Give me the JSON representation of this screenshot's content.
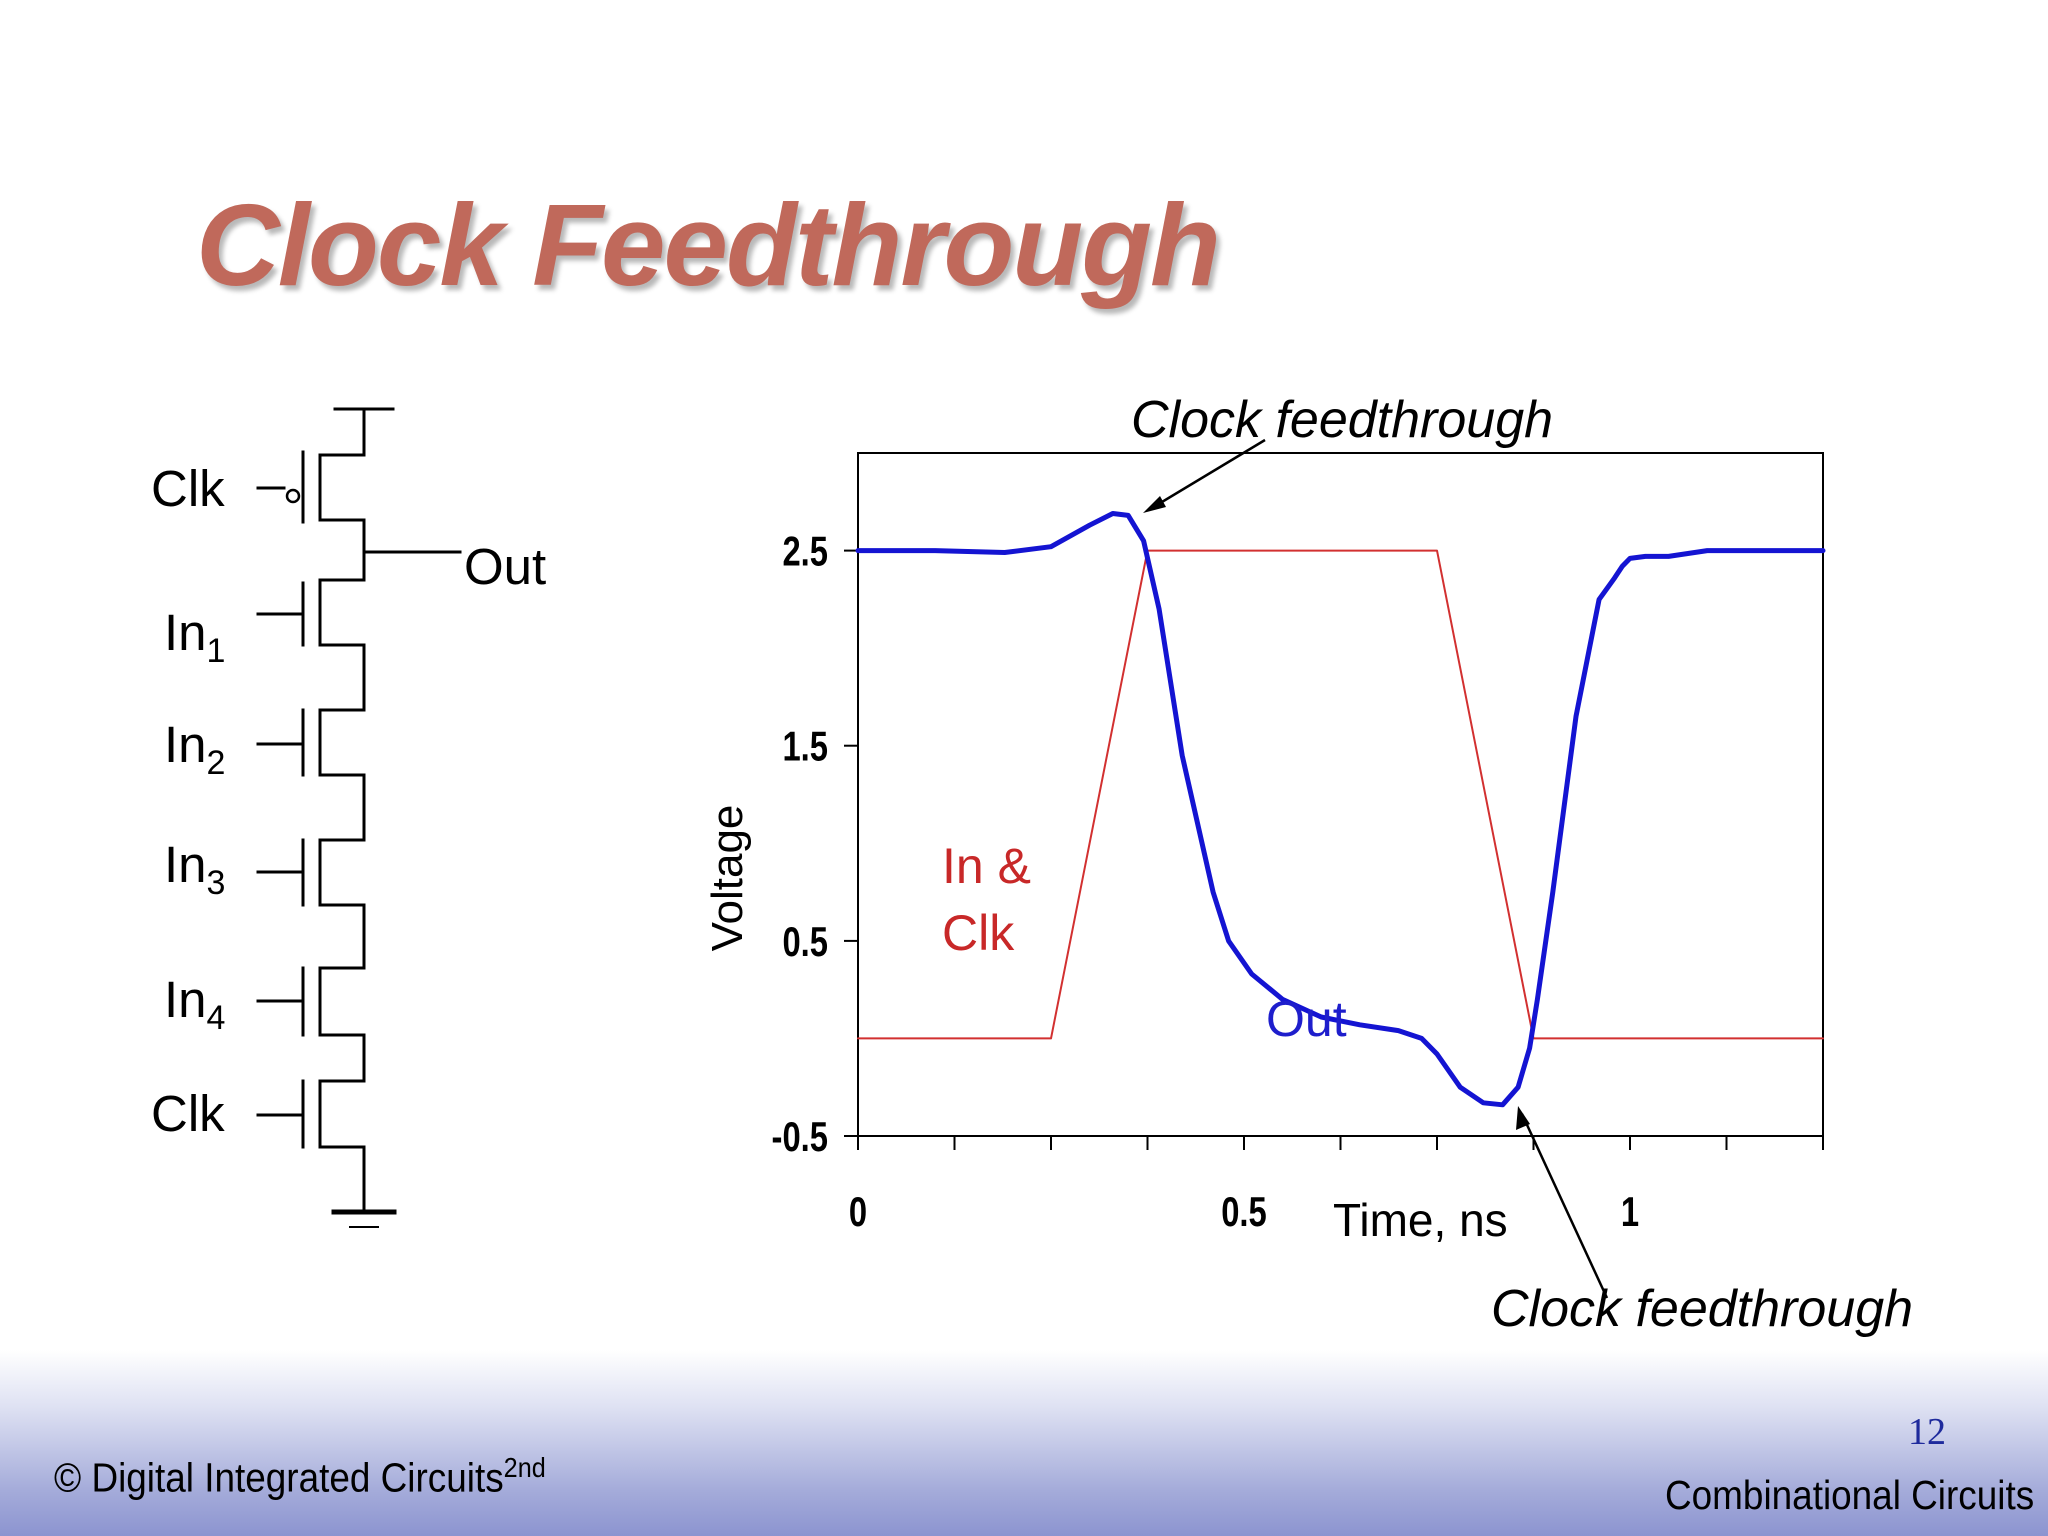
{
  "title": "Clock Feedthrough",
  "colors": {
    "title": "#c0695b",
    "out_trace": "#1414d2",
    "in_clk_trace": "#d23030",
    "page_number": "#1e2a9c"
  },
  "schematic": {
    "labels": {
      "clk_top": "Clk",
      "out": "Out",
      "in_prefix": "In",
      "clk_bottom": "Clk"
    },
    "inputs": [
      "1",
      "2",
      "3",
      "4"
    ]
  },
  "chart_data": {
    "type": "line",
    "xlabel": "Time, ns",
    "ylabel": "Voltage",
    "xlim": [
      0,
      1.25
    ],
    "ylim": [
      -0.5,
      3.0
    ],
    "x_ticks": [
      0,
      0.5,
      1
    ],
    "x_tick_labels": [
      "0",
      "0.5",
      "1"
    ],
    "y_ticks": [
      -0.5,
      0.5,
      1.5,
      2.5
    ],
    "y_tick_labels": [
      "-0.5",
      "0.5",
      "1.5",
      "2.5"
    ],
    "series": [
      {
        "name": "In & Clk",
        "name_lines": [
          "In &",
          "Clk"
        ],
        "x": [
          0,
          0.25,
          0.375,
          0.75,
          0.875,
          1.25
        ],
        "y": [
          0,
          0,
          2.5,
          2.5,
          0,
          0
        ]
      },
      {
        "name": "Out",
        "x": [
          0,
          0.1,
          0.19,
          0.25,
          0.3,
          0.33,
          0.35,
          0.37,
          0.39,
          0.42,
          0.46,
          0.48,
          0.51,
          0.55,
          0.6,
          0.65,
          0.7,
          0.73,
          0.75,
          0.78,
          0.81,
          0.835,
          0.855,
          0.87,
          0.88,
          0.9,
          0.93,
          0.96,
          0.98,
          0.99,
          1.0,
          1.02,
          1.05,
          1.1,
          1.15,
          1.2,
          1.25
        ],
        "y": [
          2.5,
          2.5,
          2.49,
          2.52,
          2.63,
          2.69,
          2.68,
          2.55,
          2.2,
          1.45,
          0.75,
          0.5,
          0.33,
          0.2,
          0.11,
          0.07,
          0.04,
          0.0,
          -0.08,
          -0.25,
          -0.33,
          -0.34,
          -0.25,
          -0.05,
          0.2,
          0.75,
          1.65,
          2.25,
          2.36,
          2.42,
          2.46,
          2.47,
          2.47,
          2.5,
          2.5,
          2.5,
          2.5
        ]
      }
    ],
    "annotations": [
      "Clock feedthrough",
      "Clock feedthrough"
    ],
    "grid": false
  },
  "footer": {
    "left": "© Digital Integrated Circuits",
    "left_sup": "2nd",
    "page_number": "12",
    "right": "Combinational Circuits"
  }
}
